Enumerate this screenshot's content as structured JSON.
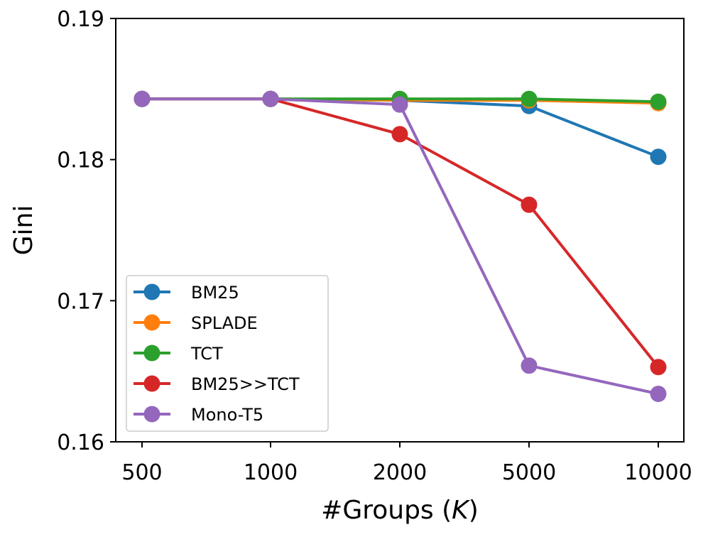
{
  "chart_data": {
    "type": "line",
    "title": "",
    "xlabel": "#Groups (K)",
    "xlabel_prefix": "#Groups (",
    "xlabel_var": "K",
    "xlabel_suffix": ")",
    "ylabel": "Gini",
    "categories": [
      "500",
      "1000",
      "2000",
      "5000",
      "10000"
    ],
    "ylim": [
      0.16,
      0.19
    ],
    "yticks": [
      0.16,
      0.17,
      0.18,
      0.19
    ],
    "ytick_labels": [
      "0.16",
      "0.17",
      "0.18",
      "0.19"
    ],
    "grid": false,
    "legend_position": "lower-left",
    "series": [
      {
        "name": "BM25",
        "color": "#1f77b4",
        "values": [
          0.1843,
          0.1843,
          0.1842,
          0.1838,
          0.1802
        ]
      },
      {
        "name": "SPLADE",
        "color": "#ff7f0e",
        "values": [
          0.1843,
          0.1843,
          0.1842,
          0.1842,
          0.184
        ]
      },
      {
        "name": "TCT",
        "color": "#2ca02c",
        "values": [
          0.1843,
          0.1843,
          0.1843,
          0.1843,
          0.1841
        ]
      },
      {
        "name": "BM25>>TCT",
        "color": "#d62728",
        "values": [
          0.1843,
          0.1843,
          0.1818,
          0.1768,
          0.1653
        ]
      },
      {
        "name": "Mono-T5",
        "color": "#9467bd",
        "values": [
          0.1843,
          0.1843,
          0.1839,
          0.1654,
          0.1634
        ]
      }
    ]
  }
}
